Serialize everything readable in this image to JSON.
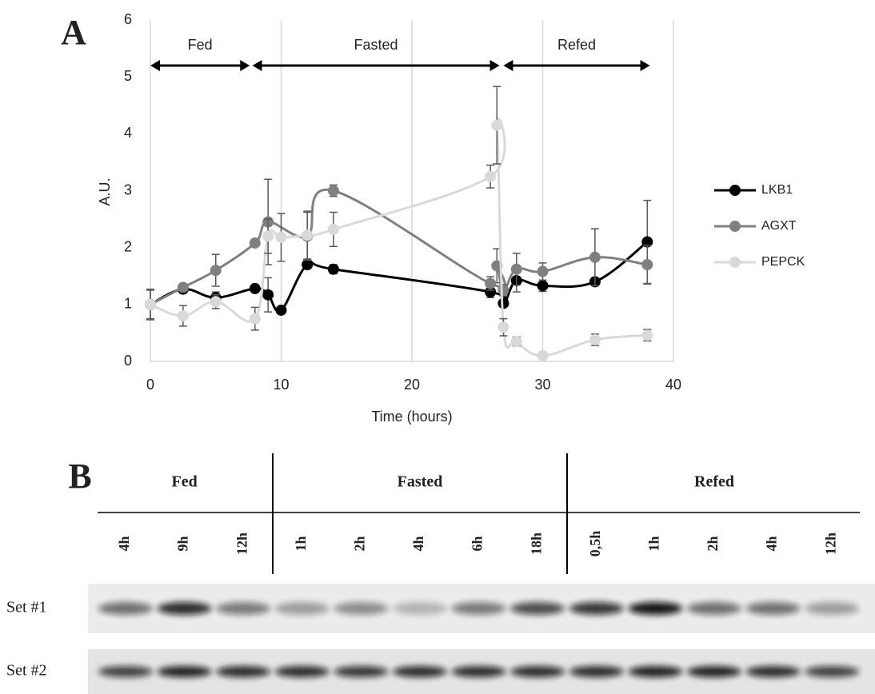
{
  "chart_data": {
    "type": "line",
    "panel_label": "A",
    "y_label": "A.U.",
    "x_label": "Time (hours)",
    "xlim": [
      0,
      40
    ],
    "xticks": [
      0,
      10,
      20,
      30,
      40
    ],
    "ylim": [
      0,
      6
    ],
    "yticks": [
      0,
      1,
      2,
      3,
      4,
      5,
      6
    ],
    "grid": "x",
    "legend": "right",
    "annotations": [
      {
        "text": "Fed",
        "x": [
          0,
          7.6
        ]
      },
      {
        "text": "Fasted",
        "x": [
          7.8,
          26.7
        ]
      },
      {
        "text": "Refed",
        "x": [
          27,
          38.2
        ]
      }
    ],
    "series": [
      {
        "name": "LKB1",
        "color": "#000000",
        "x": [
          0,
          2.5,
          5,
          8,
          9,
          10,
          12,
          14,
          26,
          27,
          28,
          30,
          34,
          38
        ],
        "values": [
          1.0,
          1.27,
          1.12,
          1.28,
          1.17,
          0.9,
          1.7,
          1.62,
          1.22,
          1.02,
          1.42,
          1.33,
          1.4,
          2.1
        ],
        "errors": [
          0.05,
          0.05,
          0.1,
          0.05,
          0.3,
          0.05,
          0.05,
          0.08,
          0.1,
          0.05,
          0.2,
          0.1,
          0.05,
          0.73
        ]
      },
      {
        "name": "AGXT",
        "color": "#808080",
        "x": [
          0,
          2.5,
          5,
          8,
          9,
          12,
          14,
          26,
          26.5,
          27,
          28,
          30,
          34,
          38
        ],
        "values": [
          1.0,
          1.3,
          1.6,
          2.08,
          2.45,
          2.2,
          3.0,
          1.37,
          1.68,
          1.25,
          1.62,
          1.58,
          1.83,
          1.7
        ],
        "errors": [
          0.27,
          0.05,
          0.28,
          0.05,
          0.75,
          0.42,
          0.1,
          0.12,
          0.3,
          0.1,
          0.28,
          0.15,
          0.5,
          0.34
        ]
      },
      {
        "name": "PEPCK",
        "color": "#d9d9d9",
        "x": [
          0,
          2.5,
          5,
          8,
          9,
          10,
          12,
          14,
          26,
          26.5,
          27,
          28,
          30,
          34,
          38
        ],
        "values": [
          1.0,
          0.8,
          1.05,
          0.75,
          2.2,
          2.18,
          2.22,
          2.32,
          3.25,
          4.15,
          0.6,
          0.35,
          0.1,
          0.38,
          0.46
        ],
        "errors": [
          0.25,
          0.18,
          0.12,
          0.2,
          0.3,
          0.42,
          0.42,
          0.3,
          0.2,
          0.68,
          0.15,
          0.08,
          0.05,
          0.1,
          0.1
        ]
      }
    ]
  },
  "blot": {
    "panel_label": "B",
    "groups": [
      {
        "label": "Fed",
        "lanes": [
          "4h",
          "9h",
          "12h"
        ]
      },
      {
        "label": "Fasted",
        "lanes": [
          "1h",
          "2h",
          "4h",
          "6h",
          "18h"
        ]
      },
      {
        "label": "Refed",
        "lanes": [
          "0,5h",
          "1h",
          "2h",
          "4h",
          "12h"
        ]
      }
    ],
    "rows": [
      {
        "label": "Set #1"
      },
      {
        "label": "Set #2"
      }
    ]
  }
}
